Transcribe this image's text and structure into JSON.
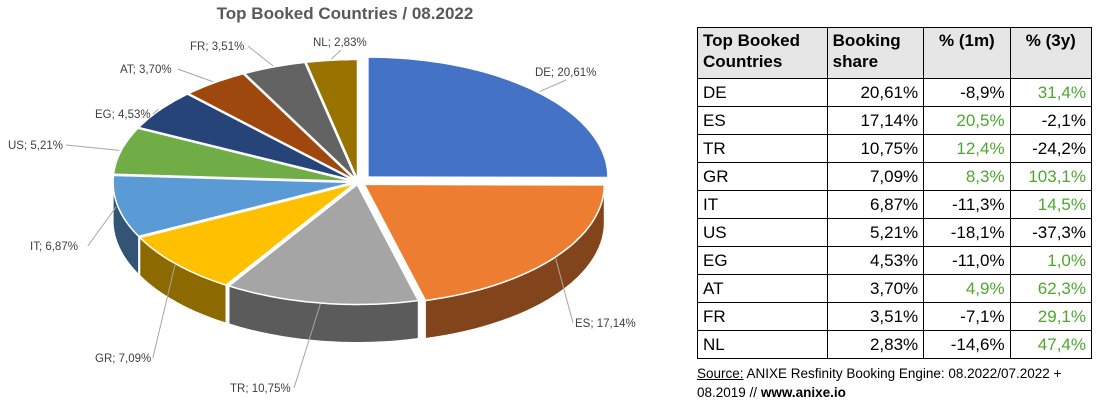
{
  "chart_data": {
    "type": "pie",
    "title": "Top Booked Countries / 08.2022",
    "slices": [
      {
        "label": "DE; 20,61%",
        "name": "DE",
        "value": 20.61,
        "color": "#4472c4"
      },
      {
        "label": "ES; 17,14%",
        "name": "ES",
        "value": 17.14,
        "color": "#ed7d31"
      },
      {
        "label": "TR; 10,75%",
        "name": "TR",
        "value": 10.75,
        "color": "#a5a5a5"
      },
      {
        "label": "GR; 7,09%",
        "name": "GR",
        "value": 7.09,
        "color": "#ffc000"
      },
      {
        "label": "IT; 6,87%",
        "name": "IT",
        "value": 6.87,
        "color": "#5b9bd5"
      },
      {
        "label": "US; 5,21%",
        "name": "US",
        "value": 5.21,
        "color": "#70ad47"
      },
      {
        "label": "EG; 4,53%",
        "name": "EG",
        "value": 4.53,
        "color": "#264478"
      },
      {
        "label": "AT; 3,70%",
        "name": "AT",
        "value": 3.7,
        "color": "#9e480e"
      },
      {
        "label": "FR; 3,51%",
        "name": "FR",
        "value": 3.51,
        "color": "#636363"
      },
      {
        "label": "NL; 2,83%",
        "name": "NL",
        "value": 2.83,
        "color": "#997300"
      }
    ]
  },
  "table": {
    "headers": [
      "Top Booked Countries",
      "Booking share",
      "% (1m)",
      "% (3y)"
    ],
    "rows": [
      {
        "country": "DE",
        "share": "20,61%",
        "m1": "-8,9%",
        "y3": "31,4%"
      },
      {
        "country": "ES",
        "share": "17,14%",
        "m1": "20,5%",
        "y3": "-2,1%"
      },
      {
        "country": "TR",
        "share": "10,75%",
        "m1": "12,4%",
        "y3": "-24,2%"
      },
      {
        "country": "GR",
        "share": "7,09%",
        "m1": "8,3%",
        "y3": "103,1%"
      },
      {
        "country": "IT",
        "share": "6,87%",
        "m1": "-11,3%",
        "y3": "14,5%"
      },
      {
        "country": "US",
        "share": "5,21%",
        "m1": "-18,1%",
        "y3": "-37,3%"
      },
      {
        "country": "EG",
        "share": "4,53%",
        "m1": "-11,0%",
        "y3": "1,0%"
      },
      {
        "country": "AT",
        "share": "3,70%",
        "m1": "4,9%",
        "y3": "62,3%"
      },
      {
        "country": "FR",
        "share": "3,51%",
        "m1": "-7,1%",
        "y3": "29,1%"
      },
      {
        "country": "NL",
        "share": "2,83%",
        "m1": "-14,6%",
        "y3": "47,4%"
      }
    ],
    "positive_color": "#4ea72e",
    "negative_color": "#000000"
  },
  "source": {
    "label": "Source:",
    "text": " ANIXE Resfinity Booking Engine: 08.2022/07.2022 + 08.2019 // ",
    "url": "www.anixe.io"
  }
}
